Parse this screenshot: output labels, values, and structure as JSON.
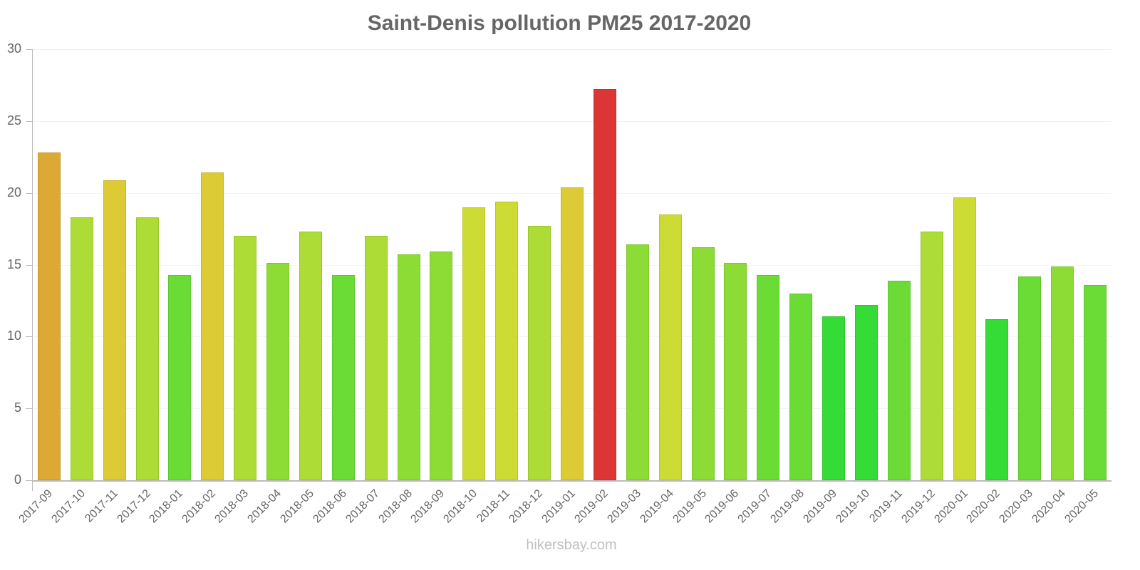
{
  "chart_data": {
    "type": "bar",
    "title": "Saint-Denis pollution PM25 2017-2020",
    "xlabel": "",
    "ylabel": "",
    "ylim": [
      0,
      30
    ],
    "yticks": [
      0,
      5,
      10,
      15,
      20,
      25,
      30
    ],
    "grid": true,
    "legend": null,
    "categories": [
      "2017-09",
      "2017-10",
      "2017-11",
      "2017-12",
      "2018-01",
      "2018-02",
      "2018-03",
      "2018-04",
      "2018-05",
      "2018-06",
      "2018-07",
      "2018-08",
      "2018-09",
      "2018-10",
      "2018-11",
      "2018-12",
      "2019-01",
      "2019-02",
      "2019-03",
      "2019-04",
      "2019-05",
      "2019-06",
      "2019-07",
      "2019-08",
      "2019-09",
      "2019-10",
      "2019-11",
      "2019-12",
      "2020-01",
      "2020-02",
      "2020-03",
      "2020-04",
      "2020-05"
    ],
    "values": [
      22.8,
      18.3,
      20.9,
      18.3,
      14.3,
      21.4,
      17.0,
      15.1,
      17.3,
      14.3,
      17.0,
      15.7,
      15.9,
      19.0,
      19.4,
      17.7,
      20.4,
      27.2,
      16.4,
      18.5,
      16.2,
      15.1,
      14.3,
      13.0,
      11.4,
      12.2,
      13.9,
      17.3,
      19.7,
      11.2,
      14.2,
      14.9,
      13.6
    ],
    "colors": [
      "#dca935",
      "#acdc35",
      "#dccb35",
      "#acdc35",
      "#6adc35",
      "#dccb35",
      "#acdc35",
      "#8cdc35",
      "#acdc35",
      "#6adc35",
      "#acdc35",
      "#8cdc35",
      "#8cdc35",
      "#cddc35",
      "#cddc35",
      "#acdc35",
      "#dccb35",
      "#dc3535",
      "#8cdc35",
      "#cddc35",
      "#8cdc35",
      "#8cdc35",
      "#6adc35",
      "#6adc35",
      "#35dc35",
      "#35dc35",
      "#6adc35",
      "#acdc35",
      "#cddc35",
      "#35dc35",
      "#6adc35",
      "#8cdc35",
      "#6adc35"
    ]
  },
  "footer": {
    "watermark": "hikersbay.com"
  }
}
